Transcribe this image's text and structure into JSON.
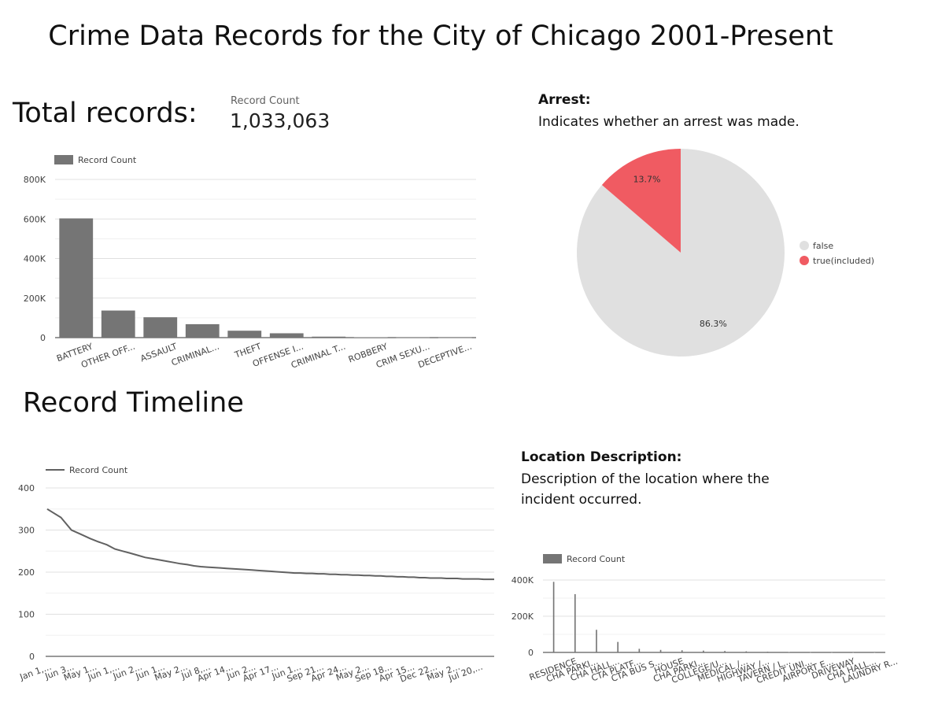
{
  "page": {
    "title": "Crime Data Records for the City of Chicago 2001-Present"
  },
  "scorecard": {
    "heading": "Total  records:",
    "label": "Record Count",
    "value": "1,033,063"
  },
  "timeline_heading": "Record Timeline",
  "arrest": {
    "heading": "Arrest:",
    "description": "Indicates whether an arrest was made."
  },
  "location": {
    "heading": "Location Description:",
    "description_line1": "Description of the location where the",
    "description_line2": "incident occurred."
  },
  "colors": {
    "bar": "#757575",
    "line": "#616161",
    "pie_false": "#e0e0e0",
    "pie_true": "#f05b62",
    "grid": "#e0e0e0"
  },
  "chart_data": [
    {
      "id": "primary-type",
      "type": "bar",
      "legend": "Record Count",
      "categories": [
        "BATTERY",
        "OTHER OFF...",
        "ASSAULT",
        "CRIMINAL...",
        "THEFT",
        "OFFENSE I...",
        "CRIMINAL T...",
        "ROBBERY",
        "CRIM SEXU...",
        "DECEPTIVE..."
      ],
      "values": [
        603000,
        137000,
        103000,
        68000,
        35000,
        22000,
        5000,
        2000,
        1000,
        500
      ],
      "ylim": [
        0,
        800000
      ],
      "yticks": [
        "0",
        "200K",
        "400K",
        "600K",
        "800K"
      ]
    },
    {
      "id": "arrest",
      "type": "pie",
      "slices": [
        {
          "name": "false",
          "value": 86.3,
          "label": "86.3%"
        },
        {
          "name": "true(included)",
          "value": 13.7,
          "label": "13.7%"
        }
      ]
    },
    {
      "id": "timeline",
      "type": "line",
      "legend": "Record Count",
      "ylim": [
        0,
        400
      ],
      "yticks": [
        "0",
        "100",
        "200",
        "300",
        "400"
      ],
      "xticks": [
        "Jan 1,...",
        "Jun 3...",
        "May 1...",
        "Jun 1,...",
        "Jun 2...",
        "Jun 1...",
        "May 2...",
        "Jul 8,...",
        "Apr 14...",
        "Jun 2...",
        "Apr 17...",
        "Jun 1...",
        "Sep 21...",
        "Apr 24...",
        "May 2...",
        "Sep 18...",
        "Apr 15...",
        "Dec 22...",
        "May 2...",
        "Jul 20,..."
      ],
      "y": [
        350,
        330,
        300,
        290,
        280,
        272,
        265,
        255,
        250,
        245,
        240,
        235,
        232,
        229,
        226,
        223,
        220,
        218,
        215,
        213,
        212,
        211,
        210,
        209,
        208,
        207,
        206,
        205,
        204,
        203,
        202,
        201,
        200,
        199,
        198,
        198,
        197,
        197,
        196,
        196,
        195,
        195,
        194,
        194,
        193,
        193,
        192,
        192,
        191,
        191,
        190,
        190,
        189,
        189,
        188,
        188,
        187,
        187,
        186,
        186,
        186,
        185,
        185,
        185,
        184,
        184,
        184,
        184,
        183,
        183,
        183
      ]
    },
    {
      "id": "location",
      "type": "bar",
      "legend": "Record Count",
      "categories": [
        "RESIDENCE",
        "CHA PARKI...",
        "CHA HALL...",
        "CTA PLATF...",
        "CTA BUS S...",
        "HOUSE",
        "CHA PARKI...",
        "COLLEGE/U...",
        "MEDICAL /...",
        "HIGHWAY /...",
        "TAVERN / L...",
        "CREDIT UNI...",
        "AIRPORT E...",
        "DRIVEWAY",
        "CHA HALL...",
        "LAUNDRY R..."
      ],
      "values": [
        390000,
        322000,
        125000,
        58000,
        20000,
        14000,
        12000,
        10000,
        8000,
        6000,
        4000,
        2000,
        1000,
        500,
        300,
        100
      ],
      "ylim": [
        0,
        400000
      ],
      "yticks": [
        "0",
        "200K",
        "400K"
      ]
    }
  ]
}
